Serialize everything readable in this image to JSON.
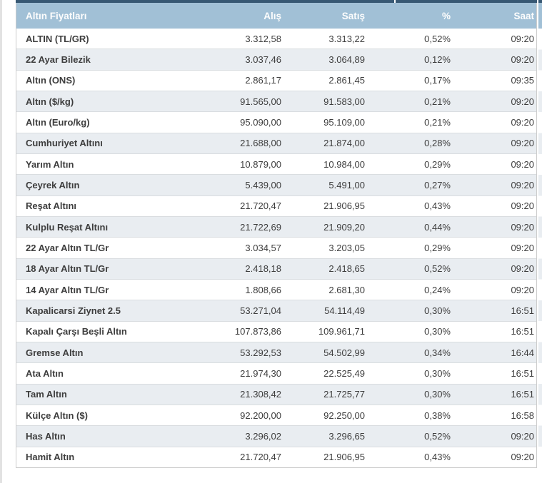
{
  "header": {
    "title": "Altın Fiyatları",
    "col_alis": "Alış",
    "col_satis": "Satış",
    "col_pct": "%",
    "col_saat": "Saat"
  },
  "rows": [
    {
      "name": "ALTIN (TL/GR)",
      "alis": "3.312,58",
      "satis": "3.313,22",
      "pct": "0,52%",
      "saat": "09:20"
    },
    {
      "name": "22 Ayar Bilezik",
      "alis": "3.037,46",
      "satis": "3.064,89",
      "pct": "0,12%",
      "saat": "09:20"
    },
    {
      "name": "Altın (ONS)",
      "alis": "2.861,17",
      "satis": "2.861,45",
      "pct": "0,17%",
      "saat": "09:35"
    },
    {
      "name": "Altın ($/kg)",
      "alis": "91.565,00",
      "satis": "91.583,00",
      "pct": "0,21%",
      "saat": "09:20"
    },
    {
      "name": "Altın (Euro/kg)",
      "alis": "95.090,00",
      "satis": "95.109,00",
      "pct": "0,21%",
      "saat": "09:20"
    },
    {
      "name": "Cumhuriyet Altını",
      "alis": "21.688,00",
      "satis": "21.874,00",
      "pct": "0,28%",
      "saat": "09:20"
    },
    {
      "name": "Yarım Altın",
      "alis": "10.879,00",
      "satis": "10.984,00",
      "pct": "0,29%",
      "saat": "09:20"
    },
    {
      "name": "Çeyrek Altın",
      "alis": "5.439,00",
      "satis": "5.491,00",
      "pct": "0,27%",
      "saat": "09:20"
    },
    {
      "name": "Reşat Altını",
      "alis": "21.720,47",
      "satis": "21.906,95",
      "pct": "0,43%",
      "saat": "09:20"
    },
    {
      "name": "Kulplu Reşat Altını",
      "alis": "21.722,69",
      "satis": "21.909,20",
      "pct": "0,44%",
      "saat": "09:20"
    },
    {
      "name": "22 Ayar Altın TL/Gr",
      "alis": "3.034,57",
      "satis": "3.203,05",
      "pct": "0,29%",
      "saat": "09:20"
    },
    {
      "name": "18 Ayar Altın TL/Gr",
      "alis": "2.418,18",
      "satis": "2.418,65",
      "pct": "0,52%",
      "saat": "09:20"
    },
    {
      "name": "14 Ayar Altın TL/Gr",
      "alis": "1.808,66",
      "satis": "2.681,30",
      "pct": "0,24%",
      "saat": "09:20"
    },
    {
      "name": "Kapalicarsi Ziynet 2.5",
      "alis": "53.271,04",
      "satis": "54.114,49",
      "pct": "0,30%",
      "saat": "16:51"
    },
    {
      "name": "Kapalı Çarşı Beşli Altın",
      "alis": "107.873,86",
      "satis": "109.961,71",
      "pct": "0,30%",
      "saat": "16:51"
    },
    {
      "name": "Gremse Altın",
      "alis": "53.292,53",
      "satis": "54.502,99",
      "pct": "0,34%",
      "saat": "16:44"
    },
    {
      "name": "Ata Altın",
      "alis": "21.974,30",
      "satis": "22.525,49",
      "pct": "0,30%",
      "saat": "16:51"
    },
    {
      "name": "Tam Altın",
      "alis": "21.308,42",
      "satis": "21.725,77",
      "pct": "0,30%",
      "saat": "16:51"
    },
    {
      "name": "Külçe Altın ($)",
      "alis": "92.200,00",
      "satis": "92.250,00",
      "pct": "0,38%",
      "saat": "16:58"
    },
    {
      "name": "Has Altın",
      "alis": "3.296,02",
      "satis": "3.296,65",
      "pct": "0,52%",
      "saat": "09:20"
    },
    {
      "name": "Hamit Altın",
      "alis": "21.720,47",
      "satis": "21.906,95",
      "pct": "0,43%",
      "saat": "09:20"
    }
  ],
  "colors": {
    "topbar": "#375873",
    "header_bg": "#a1c0d6",
    "header_text": "#fdfdfd",
    "row_alt_bg": "#e9edf1",
    "row_border": "#d9dde0",
    "table_border": "#cccccc",
    "text": "#3d3d3d"
  }
}
